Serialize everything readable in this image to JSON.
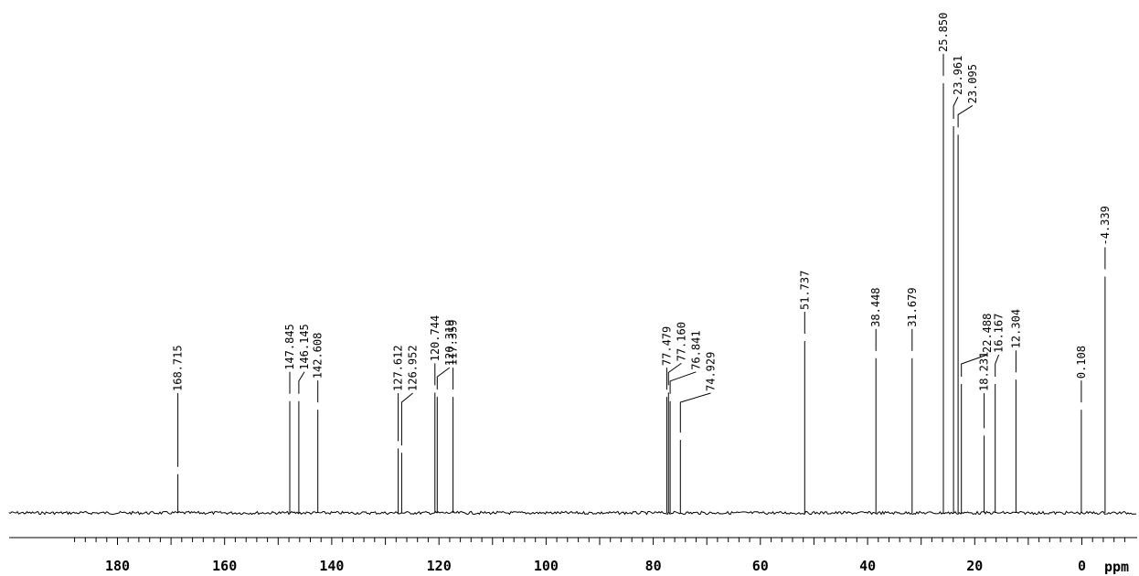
{
  "chart_data": {
    "type": "line",
    "spectrum": "13C NMR",
    "xlabel": "ppm",
    "xlim": [
      188,
      -8
    ],
    "x_axis_reversed": true,
    "x_ticks": [
      180,
      160,
      140,
      120,
      100,
      80,
      60,
      40,
      20,
      0
    ],
    "x_tick_labels": [
      "180",
      "160",
      "140",
      "120",
      "100",
      "80",
      "60",
      "40",
      "20",
      "0"
    ],
    "minor_tick_step": 2,
    "baseline_noise": true,
    "peaks": [
      {
        "shift": 168.715,
        "label": "168.715",
        "intensity": 0.09
      },
      {
        "shift": 147.845,
        "label": "147.845",
        "intensity": 0.26
      },
      {
        "shift": 146.145,
        "label": "146.145",
        "intensity": 0.26
      },
      {
        "shift": 142.608,
        "label": "142.608",
        "intensity": 0.24
      },
      {
        "shift": 127.612,
        "label": "127.612",
        "intensity": 0.15
      },
      {
        "shift": 126.952,
        "label": "126.952",
        "intensity": 0.14
      },
      {
        "shift": 120.744,
        "label": "120.744",
        "intensity": 0.28
      },
      {
        "shift": 120.319,
        "label": "120.319",
        "intensity": 0.27
      },
      {
        "shift": 117.359,
        "label": "117.359",
        "intensity": 0.27
      },
      {
        "shift": 77.479,
        "label": "77.479",
        "intensity": 0.27
      },
      {
        "shift": 77.16,
        "label": "77.160",
        "intensity": 0.28
      },
      {
        "shift": 76.841,
        "label": "76.841",
        "intensity": 0.26
      },
      {
        "shift": 74.929,
        "label": "74.929",
        "intensity": 0.17
      },
      {
        "shift": 51.737,
        "label": "51.737",
        "intensity": 0.4
      },
      {
        "shift": 38.448,
        "label": "38.448",
        "intensity": 0.36
      },
      {
        "shift": 31.679,
        "label": "31.679",
        "intensity": 0.36
      },
      {
        "shift": 25.85,
        "label": "25.850",
        "intensity": 1.0
      },
      {
        "shift": 23.961,
        "label": "23.961",
        "intensity": 0.9
      },
      {
        "shift": 23.095,
        "label": "23.095",
        "intensity": 0.88
      },
      {
        "shift": 22.488,
        "label": "22.488",
        "intensity": 0.3
      },
      {
        "shift": 18.231,
        "label": "18.231",
        "intensity": 0.18
      },
      {
        "shift": 16.167,
        "label": "16.167",
        "intensity": 0.3
      },
      {
        "shift": 12.304,
        "label": "12.304",
        "intensity": 0.31
      },
      {
        "shift": 0.108,
        "label": "0.108",
        "intensity": 0.24
      },
      {
        "shift": -4.339,
        "label": "-4.339",
        "intensity": 0.55
      }
    ]
  },
  "colors": {
    "line": "#000000",
    "background": "#ffffff"
  }
}
